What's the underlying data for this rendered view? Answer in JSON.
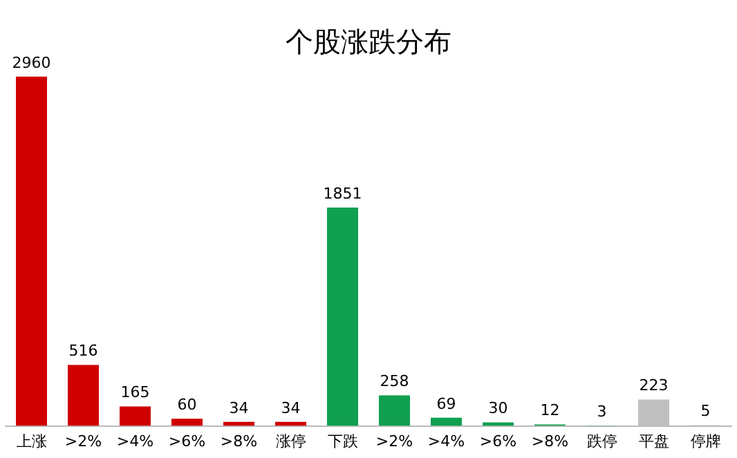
{
  "chart_data": {
    "type": "bar",
    "title": "个股涨跌分布",
    "categories": [
      "上涨",
      ">2%",
      ">4%",
      ">6%",
      ">8%",
      "涨停",
      "下跌",
      ">2%",
      ">4%",
      ">6%",
      ">8%",
      "跌停",
      "平盘",
      "停牌"
    ],
    "values": [
      2960,
      516,
      165,
      60,
      34,
      34,
      1851,
      258,
      69,
      30,
      12,
      3,
      223,
      5
    ],
    "colors": [
      "#d00000",
      "#d00000",
      "#d00000",
      "#d00000",
      "#d00000",
      "#d00000",
      "#10a050",
      "#10a050",
      "#10a050",
      "#10a050",
      "#10a050",
      "#10a050",
      "#c0c0c0",
      "#a0a0a0"
    ],
    "data_labels": true,
    "grid": false,
    "legend": false
  }
}
